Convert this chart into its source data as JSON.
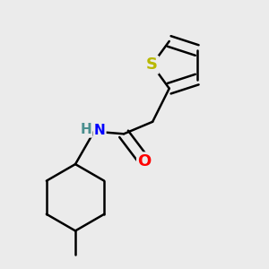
{
  "background_color": "#ebebeb",
  "atom_colors": {
    "C": "#000000",
    "H": "#4a8f8f",
    "N": "#0000ff",
    "O": "#ff0000",
    "S": "#b8b800"
  },
  "bond_color": "#000000",
  "bond_width": 1.8,
  "font_size_S": 13,
  "font_size_O": 13,
  "font_size_N": 11,
  "font_size_H": 11
}
